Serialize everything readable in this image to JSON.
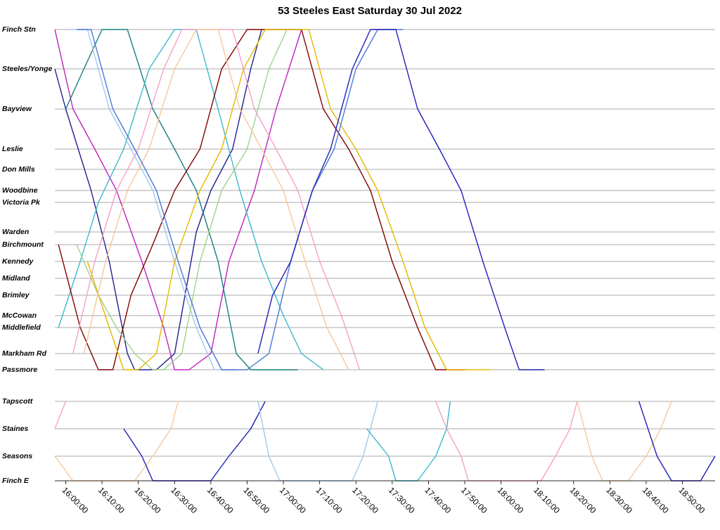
{
  "chart_data": {
    "type": "line",
    "title": "53 Steeles East Saturday 30 Jul 2022",
    "xlabel": "",
    "ylabel": "",
    "x_range": [
      "15:57:00",
      "18:59:00"
    ],
    "x_ticks": [
      "16:00:00",
      "16:10:00",
      "16:20:00",
      "16:30:00",
      "16:40:00",
      "16:50:00",
      "17:00:00",
      "17:10:00",
      "17:20:00",
      "17:30:00",
      "17:40:00",
      "17:50:00",
      "18:00:00",
      "18:10:00",
      "18:20:00",
      "18:30:00",
      "18:40:00",
      "18:50:00"
    ],
    "stops": [
      "Finch Stn",
      "Steeles/Yonge",
      "Bayview",
      "Leslie",
      "Don Mills",
      "Woodbine",
      "Victoria Pk",
      "Warden",
      "Birchmount",
      "Kennedy",
      "Midland",
      "Brimley",
      "McCowan",
      "Middlefield",
      "Markham Rd",
      "Passmore",
      "Tapscott",
      "Staines",
      "Seasons",
      "Finch E"
    ],
    "grid": true,
    "legend": "none",
    "series": [
      {
        "color": "#1f1f8f",
        "points": [
          [
            "15:57",
            "Steeles/Yonge"
          ],
          [
            "16:00",
            "Bayview"
          ],
          [
            "16:07",
            "Woodbine"
          ],
          [
            "16:12",
            "Kennedy"
          ],
          [
            "16:17",
            "Markham Rd"
          ],
          [
            "16:19",
            "Passmore"
          ],
          [
            "16:25",
            "Passmore"
          ],
          [
            "16:30",
            "Markham Rd"
          ],
          [
            "16:36",
            "Warden"
          ],
          [
            "16:40",
            "Woodbine"
          ],
          [
            "16:46",
            "Leslie"
          ],
          [
            "16:51",
            "Steeles/Yonge"
          ],
          [
            "16:54",
            "Finch Stn"
          ]
        ]
      },
      {
        "color": "#c020c0",
        "points": [
          [
            "15:57",
            "Finch Stn"
          ],
          [
            "16:02",
            "Bayview"
          ],
          [
            "16:08",
            "Leslie"
          ],
          [
            "16:14",
            "Woodbine"
          ],
          [
            "16:21",
            "Kennedy"
          ],
          [
            "16:27",
            "Middlefield"
          ],
          [
            "16:30",
            "Passmore"
          ],
          [
            "16:34",
            "Passmore"
          ],
          [
            "16:40",
            "Markham Rd"
          ],
          [
            "16:45",
            "Kennedy"
          ],
          [
            "16:52",
            "Woodbine"
          ],
          [
            "16:58",
            "Bayview"
          ],
          [
            "17:05",
            "Finch Stn"
          ]
        ]
      },
      {
        "color": "#1a7f7f",
        "points": [
          [
            "16:00",
            "Bayview"
          ],
          [
            "16:05",
            "Steeles/Yonge"
          ],
          [
            "16:10",
            "Finch Stn"
          ],
          [
            "16:17",
            "Finch Stn"
          ],
          [
            "16:24",
            "Bayview"
          ],
          [
            "16:30",
            "Leslie"
          ],
          [
            "16:36",
            "Woodbine"
          ],
          [
            "16:42",
            "Kennedy"
          ],
          [
            "16:47",
            "Markham Rd"
          ],
          [
            "16:51",
            "Passmore"
          ],
          [
            "17:04",
            "Passmore"
          ]
        ]
      },
      {
        "color": "#3bb8d0",
        "points": [
          [
            "15:58",
            "Middlefield"
          ],
          [
            "16:04",
            "Kennedy"
          ],
          [
            "16:09",
            "Victoria Pk"
          ],
          [
            "16:16",
            "Leslie"
          ],
          [
            "16:23",
            "Steeles/Yonge"
          ],
          [
            "16:30",
            "Finch Stn"
          ],
          [
            "16:36",
            "Finch Stn"
          ],
          [
            "16:42",
            "Bayview"
          ],
          [
            "16:48",
            "Woodbine"
          ],
          [
            "16:54",
            "Kennedy"
          ],
          [
            "17:00",
            "McCowan"
          ],
          [
            "17:05",
            "Markham Rd"
          ],
          [
            "17:11",
            "Passmore"
          ]
        ]
      },
      {
        "color": "#800000",
        "points": [
          [
            "15:58",
            "Birchmount"
          ],
          [
            "16:04",
            "Middlefield"
          ],
          [
            "16:09",
            "Passmore"
          ],
          [
            "16:13",
            "Passmore"
          ],
          [
            "16:18",
            "Brimley"
          ],
          [
            "16:24",
            "Birchmount"
          ],
          [
            "16:30",
            "Woodbine"
          ],
          [
            "16:37",
            "Leslie"
          ],
          [
            "16:43",
            "Steeles/Yonge"
          ],
          [
            "16:50",
            "Finch Stn"
          ],
          [
            "17:05",
            "Finch Stn"
          ],
          [
            "17:11",
            "Bayview"
          ],
          [
            "17:18",
            "Leslie"
          ],
          [
            "17:24",
            "Woodbine"
          ],
          [
            "17:30",
            "Kennedy"
          ],
          [
            "17:37",
            "Middlefield"
          ],
          [
            "17:42",
            "Passmore"
          ],
          [
            "17:50",
            "Passmore"
          ]
        ]
      },
      {
        "color": "#a3c8e8",
        "points": [
          [
            "16:01",
            "Finch Stn"
          ],
          [
            "16:06",
            "Finch Stn"
          ],
          [
            "16:12",
            "Bayview"
          ],
          [
            "16:18",
            "Leslie"
          ],
          [
            "16:24",
            "Woodbine"
          ],
          [
            "16:30",
            "Kennedy"
          ],
          [
            "16:36",
            "Middlefield"
          ],
          [
            "16:41",
            "Passmore"
          ],
          [
            "16:47",
            "Passmore"
          ]
        ]
      },
      {
        "color": "#9ed38a",
        "points": [
          [
            "16:03",
            "Birchmount"
          ],
          [
            "16:09",
            "Brimley"
          ],
          [
            "16:14",
            "Middlefield"
          ],
          [
            "16:19",
            "Markham Rd"
          ],
          [
            "16:24",
            "Passmore"
          ],
          [
            "16:27",
            "Passmore"
          ],
          [
            "16:32",
            "Markham Rd"
          ],
          [
            "16:37",
            "Kennedy"
          ],
          [
            "16:43",
            "Woodbine"
          ],
          [
            "16:50",
            "Leslie"
          ],
          [
            "16:56",
            "Steeles/Yonge"
          ],
          [
            "17:01",
            "Finch Stn"
          ]
        ]
      },
      {
        "color": "#f5a0c8",
        "points": [
          [
            "16:02",
            "Markham Rd"
          ],
          [
            "16:08",
            "Kennedy"
          ],
          [
            "16:14",
            "Woodbine"
          ],
          [
            "16:20",
            "Leslie"
          ],
          [
            "16:27",
            "Steeles/Yonge"
          ],
          [
            "16:32",
            "Finch Stn"
          ],
          [
            "16:46",
            "Finch Stn"
          ],
          [
            "16:52",
            "Bayview"
          ],
          [
            "16:58",
            "Leslie"
          ],
          [
            "17:04",
            "Woodbine"
          ],
          [
            "17:10",
            "Kennedy"
          ],
          [
            "17:16",
            "McCowan"
          ],
          [
            "17:21",
            "Passmore"
          ]
        ]
      },
      {
        "color": "#e6b800",
        "points": [
          [
            "16:06",
            "Kennedy"
          ],
          [
            "16:12",
            "Middlefield"
          ],
          [
            "16:16",
            "Passmore"
          ],
          [
            "16:20",
            "Passmore"
          ],
          [
            "16:25",
            "Markham Rd"
          ],
          [
            "16:30",
            "Kennedy"
          ],
          [
            "16:37",
            "Woodbine"
          ],
          [
            "16:43",
            "Leslie"
          ],
          [
            "16:49",
            "Steeles/Yonge"
          ],
          [
            "16:55",
            "Finch Stn"
          ],
          [
            "17:07",
            "Finch Stn"
          ],
          [
            "17:13",
            "Bayview"
          ],
          [
            "17:20",
            "Leslie"
          ],
          [
            "17:26",
            "Woodbine"
          ],
          [
            "17:33",
            "Kennedy"
          ],
          [
            "17:39",
            "Middlefield"
          ],
          [
            "17:45",
            "Passmore"
          ],
          [
            "17:57",
            "Passmore"
          ]
        ]
      },
      {
        "color": "#f6c89a",
        "points": [
          [
            "16:05",
            "Markham Rd"
          ],
          [
            "16:11",
            "Kennedy"
          ],
          [
            "16:17",
            "Woodbine"
          ],
          [
            "16:23",
            "Leslie"
          ],
          [
            "16:30",
            "Steeles/Yonge"
          ],
          [
            "16:36",
            "Finch Stn"
          ],
          [
            "16:42",
            "Finch Stn"
          ],
          [
            "16:48",
            "Bayview"
          ],
          [
            "16:54",
            "Leslie"
          ],
          [
            "17:00",
            "Woodbine"
          ],
          [
            "17:06",
            "Kennedy"
          ],
          [
            "17:12",
            "Middlefield"
          ],
          [
            "17:18",
            "Passmore"
          ]
        ]
      },
      {
        "color": "#4a78d6",
        "points": [
          [
            "16:03",
            "Finch Stn"
          ],
          [
            "16:07",
            "Finch Stn"
          ],
          [
            "16:13",
            "Bayview"
          ],
          [
            "16:19",
            "Leslie"
          ],
          [
            "16:25",
            "Woodbine"
          ],
          [
            "16:31",
            "Kennedy"
          ],
          [
            "16:37",
            "Middlefield"
          ],
          [
            "16:43",
            "Passmore"
          ],
          [
            "16:50",
            "Passmore"
          ],
          [
            "16:56",
            "Markham Rd"
          ],
          [
            "17:02",
            "Kennedy"
          ],
          [
            "17:08",
            "Woodbine"
          ],
          [
            "17:14",
            "Leslie"
          ],
          [
            "17:20",
            "Steeles/Yonge"
          ],
          [
            "17:26",
            "Finch Stn"
          ],
          [
            "17:33",
            "Finch Stn"
          ]
        ]
      },
      {
        "color": "#2020b8",
        "points": [
          [
            "16:53",
            "Markham Rd"
          ],
          [
            "16:57",
            "Brimley"
          ],
          [
            "17:02",
            "Kennedy"
          ],
          [
            "17:08",
            "Woodbine"
          ],
          [
            "17:13",
            "Leslie"
          ],
          [
            "17:19",
            "Steeles/Yonge"
          ],
          [
            "17:24",
            "Finch Stn"
          ],
          [
            "17:31",
            "Finch Stn"
          ],
          [
            "17:37",
            "Bayview"
          ],
          [
            "17:43",
            "Leslie"
          ],
          [
            "17:49",
            "Woodbine"
          ],
          [
            "17:55",
            "Kennedy"
          ],
          [
            "18:01",
            "Middlefield"
          ],
          [
            "18:05",
            "Passmore"
          ],
          [
            "18:12",
            "Passmore"
          ]
        ]
      }
    ],
    "branch_series": [
      {
        "color": "#f5a0c8",
        "points": [
          [
            "15:57",
            "Staines"
          ],
          [
            "16:00",
            "Tapscott"
          ]
        ]
      },
      {
        "color": "#f6c89a",
        "points": [
          [
            "15:57",
            "Seasons"
          ],
          [
            "16:02",
            "Finch E"
          ],
          [
            "16:19",
            "Finch E"
          ],
          [
            "16:24",
            "Seasons"
          ],
          [
            "16:29",
            "Staines"
          ],
          [
            "16:31",
            "Tapscott"
          ]
        ]
      },
      {
        "color": "#2020b8",
        "points": [
          [
            "16:16",
            "Staines"
          ],
          [
            "16:21",
            "Seasons"
          ],
          [
            "16:24",
            "Finch E"
          ],
          [
            "16:40",
            "Finch E"
          ],
          [
            "16:45",
            "Seasons"
          ],
          [
            "16:51",
            "Staines"
          ],
          [
            "16:55",
            "Tapscott"
          ]
        ]
      },
      {
        "color": "#a3c8e8",
        "points": [
          [
            "16:53",
            "Tapscott"
          ],
          [
            "16:56",
            "Seasons"
          ],
          [
            "16:59",
            "Finch E"
          ],
          [
            "17:19",
            "Finch E"
          ],
          [
            "17:22",
            "Seasons"
          ],
          [
            "17:24",
            "Staines"
          ],
          [
            "17:26",
            "Tapscott"
          ]
        ]
      },
      {
        "color": "#3bb8d0",
        "points": [
          [
            "17:23",
            "Staines"
          ],
          [
            "17:29",
            "Seasons"
          ],
          [
            "17:31",
            "Finch E"
          ],
          [
            "17:37",
            "Finch E"
          ],
          [
            "17:42",
            "Seasons"
          ],
          [
            "17:45",
            "Staines"
          ],
          [
            "17:46",
            "Tapscott"
          ]
        ]
      },
      {
        "color": "#f5a0c8",
        "points": [
          [
            "17:42",
            "Tapscott"
          ],
          [
            "17:45",
            "Staines"
          ],
          [
            "17:49",
            "Seasons"
          ],
          [
            "17:51",
            "Finch E"
          ],
          [
            "18:11",
            "Finch E"
          ],
          [
            "18:15",
            "Seasons"
          ],
          [
            "18:19",
            "Staines"
          ],
          [
            "18:21",
            "Tapscott"
          ]
        ]
      },
      {
        "color": "#f6c89a",
        "points": [
          [
            "18:21",
            "Tapscott"
          ],
          [
            "18:25",
            "Seasons"
          ],
          [
            "18:28",
            "Finch E"
          ],
          [
            "18:35",
            "Finch E"
          ],
          [
            "18:40",
            "Seasons"
          ],
          [
            "18:44",
            "Staines"
          ],
          [
            "18:47",
            "Tapscott"
          ]
        ]
      },
      {
        "color": "#2020b8",
        "points": [
          [
            "18:38",
            "Tapscott"
          ],
          [
            "18:43",
            "Seasons"
          ],
          [
            "18:47",
            "Finch E"
          ],
          [
            "18:55",
            "Finch E"
          ],
          [
            "18:59",
            "Seasons"
          ]
        ]
      }
    ]
  }
}
